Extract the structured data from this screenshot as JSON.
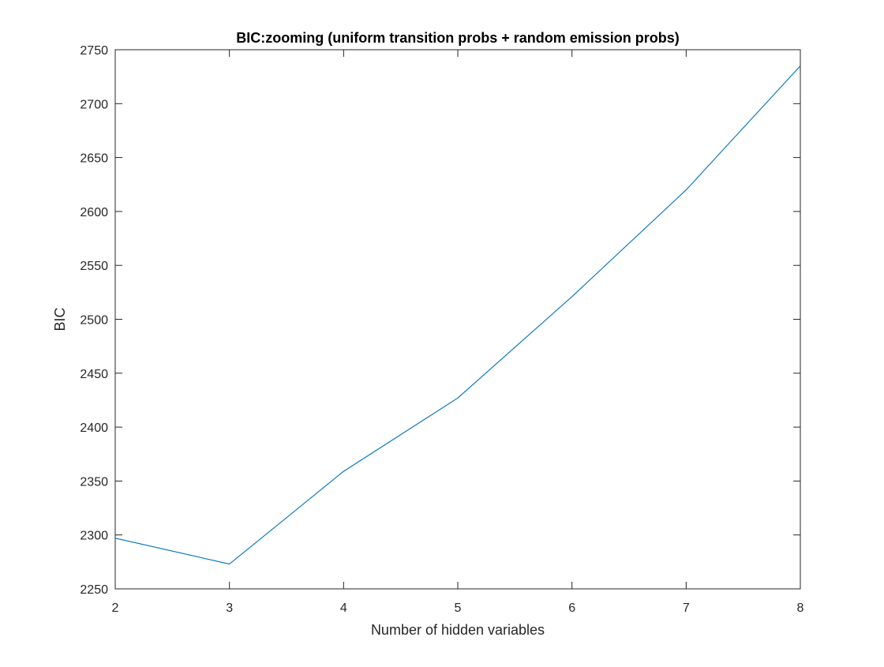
{
  "chart_data": {
    "type": "line",
    "title": "BIC:zooming  (uniform transition probs + random emission probs)",
    "xlabel": "Number of hidden variables",
    "ylabel": "BIC",
    "xlim": [
      2,
      8
    ],
    "ylim": [
      2250,
      2750
    ],
    "xticks": [
      "2",
      "3",
      "4",
      "5",
      "6",
      "7",
      "8"
    ],
    "yticks": [
      "2250",
      "2300",
      "2350",
      "2400",
      "2450",
      "2500",
      "2550",
      "2600",
      "2650",
      "2700",
      "2750"
    ],
    "grid": false,
    "line_color": "#0072BD",
    "axis_color": "#262626",
    "series": [
      {
        "x": [
          2,
          3,
          4,
          5,
          6,
          7,
          8
        ],
        "values": [
          2297,
          2273,
          2359,
          2427,
          2521,
          2620,
          2735
        ]
      }
    ]
  }
}
